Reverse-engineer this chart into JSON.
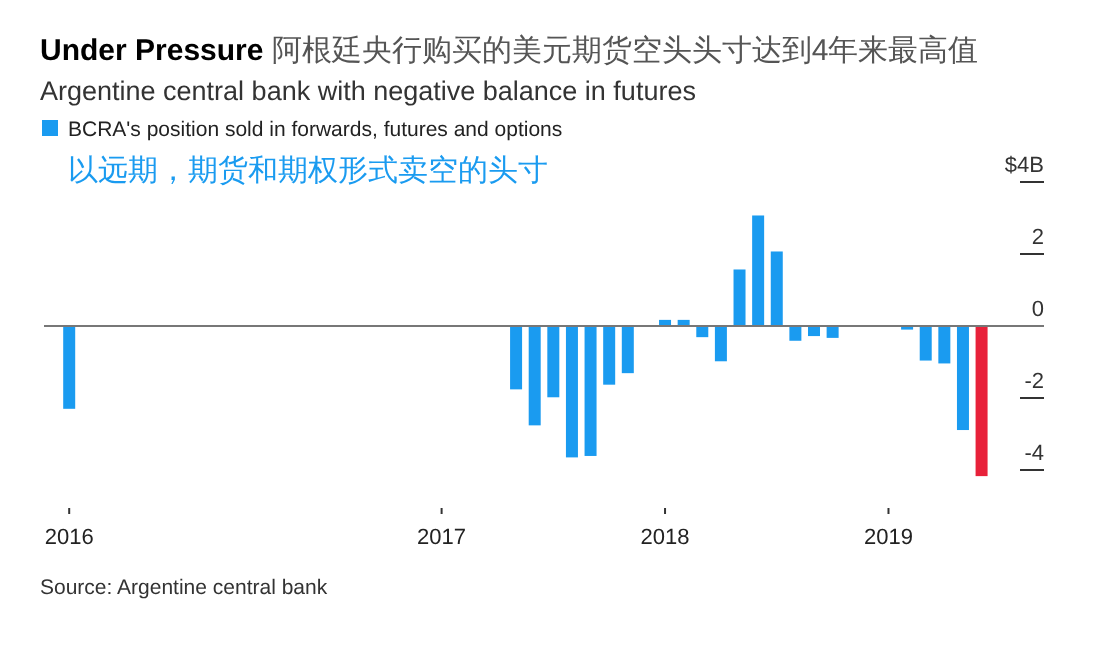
{
  "chart_data": {
    "type": "bar",
    "title": "**Under Pressure** 阿根廷央行购买的美元期货空头头寸达到4年来最高值",
    "subtitle": "Argentine central bank with negative balance in futures",
    "categories": [
      "2016",
      null,
      null,
      null,
      null,
      null,
      null,
      null,
      null,
      null,
      null,
      null,
      null,
      null,
      null,
      null,
      null,
      null,
      null,
      null,
      "2017",
      null,
      null,
      null,
      null,
      null,
      null,
      null,
      null,
      null,
      null,
      null,
      "2018",
      null,
      null,
      null,
      null,
      null,
      null,
      null,
      null,
      null,
      null,
      null,
      "2019",
      null,
      null,
      null,
      null,
      null
    ],
    "series": [
      {
        "name": "BCRA's position sold in forwards, futures and options",
        "color": "#1a9bf0",
        "colors": [
          "#1a9bf0",
          "#1a9bf0",
          "#1a9bf0",
          "#1a9bf0",
          "#1a9bf0",
          "#1a9bf0",
          "#1a9bf0",
          "#1a9bf0",
          "#1a9bf0",
          "#1a9bf0",
          "#1a9bf0",
          "#1a9bf0",
          "#1a9bf0",
          "#1a9bf0",
          "#1a9bf0",
          "#1a9bf0",
          "#1a9bf0",
          "#1a9bf0",
          "#1a9bf0",
          "#1a9bf0",
          "#1a9bf0",
          "#1a9bf0",
          "#1a9bf0",
          "#1a9bf0",
          "#1a9bf0",
          "#1a9bf0",
          "#1a9bf0",
          "#1a9bf0",
          "#1a9bf0",
          "#1a9bf0",
          "#1a9bf0",
          "#1a9bf0",
          "#1a9bf0",
          "#1a9bf0",
          "#1a9bf0",
          "#1a9bf0",
          "#1a9bf0",
          "#1a9bf0",
          "#1a9bf0",
          "#1a9bf0",
          "#1a9bf0",
          "#1a9bf0",
          "#1a9bf0",
          "#1a9bf0",
          "#1a9bf0",
          "#1a9bf0",
          "#1a9bf0",
          "#1a9bf0",
          "#1a9bf0",
          "#e8213a"
        ],
        "values": [
          -2.3,
          0,
          0,
          0,
          0,
          0,
          0,
          0,
          0,
          0,
          0,
          0,
          0,
          0,
          0,
          0,
          0,
          0,
          0,
          0,
          0,
          0,
          0,
          0,
          -1.76,
          -2.76,
          -1.98,
          -3.65,
          -3.61,
          -1.63,
          -1.31,
          0,
          0.17,
          0.17,
          -0.31,
          -0.98,
          1.57,
          3.07,
          2.07,
          -0.41,
          -0.28,
          -0.33,
          0,
          0,
          0,
          -0.1,
          -0.96,
          -1.04,
          -2.89,
          -4.17
        ]
      }
    ],
    "ylim": [
      -4.17,
      4
    ],
    "yticks": [
      {
        "value": 4,
        "label": "$4B"
      },
      2,
      0,
      -2,
      -4
    ],
    "legend": "top left",
    "annotations": [
      "以远期，期货和期权形式卖空的头寸",
      "Source: Argentine central bank"
    ]
  }
}
